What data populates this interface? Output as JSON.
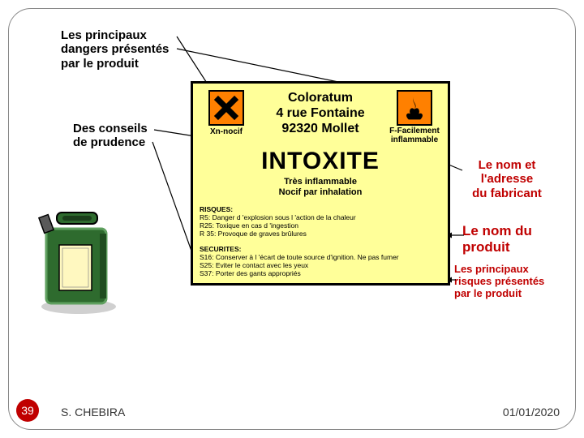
{
  "annotations": {
    "dangers": "Les principaux\ndangers présentés\npar le produit",
    "conseils": "Des conseils\nde prudence",
    "nom_adresse": "Le nom et\nl'adresse\ndu fabricant",
    "nom_produit": "Le nom du\nproduit",
    "risques": "Les principaux\nrisques présentés\npar le produit"
  },
  "label": {
    "hazard_left_caption": "Xn-nocif",
    "hazard_right_caption": "F-Facilement\ninflammable",
    "address_line1": "Coloratum",
    "address_line2": "4 rue Fontaine",
    "address_line3": "92320 Mollet",
    "product_name": "INTOXITE",
    "subtitle_line1": "Très inflammable",
    "subtitle_line2": "Nocif par inhalation",
    "risks_title": "RISQUES:",
    "risks_r5": "R5: Danger d 'explosion sous l 'action de la chaleur",
    "risks_r25": "R25: Toxique en cas d 'ingestion",
    "risks_r35": "R 35: Provoque de graves brûlures",
    "securities_title": "SECURITES:",
    "securities_s16": "S16: Conserver à l 'écart de toute source d'ignition. Ne pas fumer",
    "securities_s25": "S25: Eviter le contact avec les yeux",
    "securities_s37": "S37: Porter des gants appropriés"
  },
  "footer": {
    "slide_number": "39",
    "author": "S. CHEBIRA",
    "date": "01/01/2020"
  },
  "colors": {
    "label_bg": "#ffff99",
    "hazard_bg": "#ff8000",
    "red": "#c00000"
  }
}
